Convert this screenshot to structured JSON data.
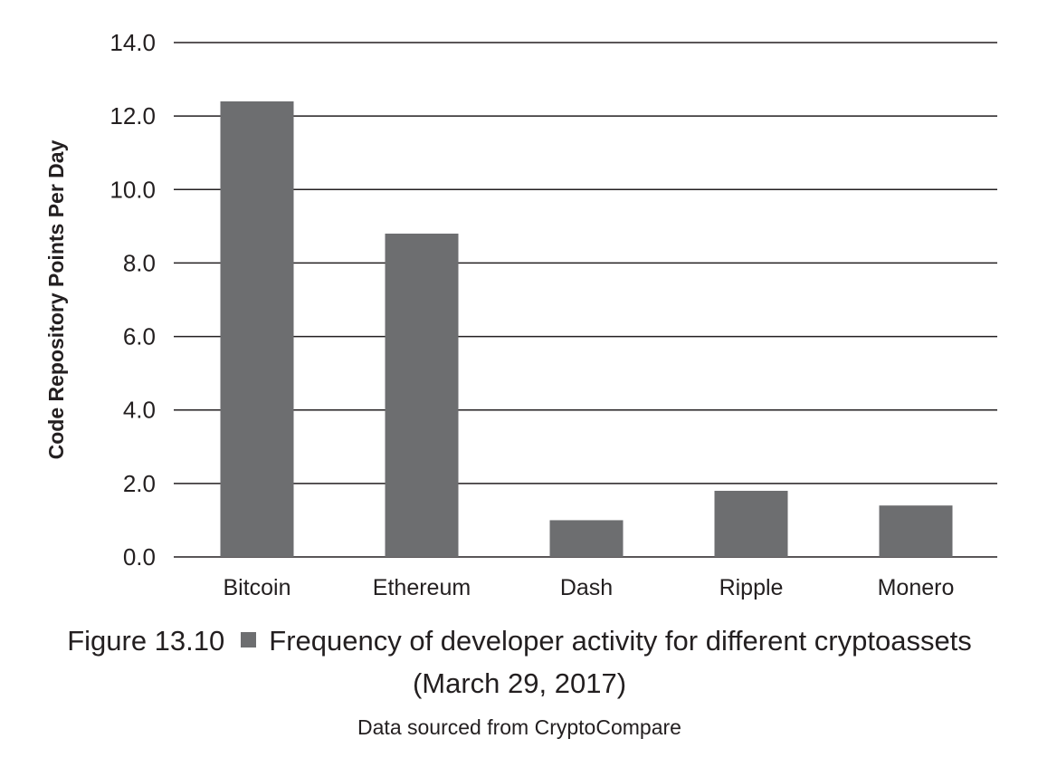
{
  "chart_data": {
    "type": "bar",
    "categories": [
      "Bitcoin",
      "Ethereum",
      "Dash",
      "Ripple",
      "Monero"
    ],
    "values": [
      12.4,
      8.8,
      1.0,
      1.8,
      1.4
    ],
    "ylabel": "Code Repository Points Per Day",
    "xlabel": "",
    "ylim": [
      0,
      14
    ],
    "yticks": [
      "0.0",
      "2.0",
      "4.0",
      "6.0",
      "8.0",
      "10.0",
      "12.0",
      "14.0"
    ],
    "grid": true,
    "bar_color": "#6d6e70",
    "grid_color": "#231f20"
  },
  "caption": {
    "figure_label": "Figure 13.10",
    "title": "Frequency of developer activity for different cryptoassets",
    "date": "(March 29, 2017)",
    "source": "Data sourced from CryptoCompare"
  }
}
